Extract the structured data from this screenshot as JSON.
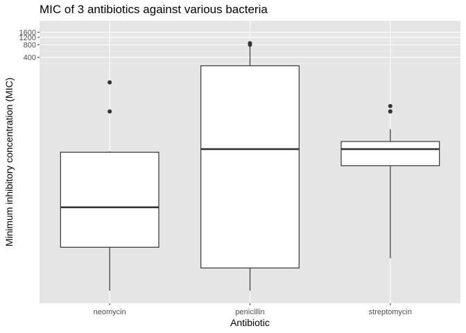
{
  "chart_data": {
    "type": "box",
    "title": "MIC of 3 antibiotics against various bacteria",
    "xlabel": "Antibiotic",
    "ylabel": "Minimum inhibitory concentration (MIC)",
    "y_scale": "log",
    "ylim": [
      0.0005,
      3000
    ],
    "y_tick_values": [
      400,
      800,
      1200,
      1600
    ],
    "y_tick_labels": [
      "400",
      "800",
      "1200",
      "1600"
    ],
    "categories": [
      "neomycin",
      "penicillin",
      "streptomycin"
    ],
    "boxes": [
      {
        "name": "neomycin",
        "whisker_low": 0.001,
        "q1": 0.011,
        "median": 0.1,
        "q3": 2.1,
        "whisker_high": 2.2,
        "outliers": [
          20,
          100
        ]
      },
      {
        "name": "penicillin",
        "whisker_low": 0.001,
        "q1": 0.0035,
        "median": 2.5,
        "q3": 250,
        "whisker_high": 800,
        "outliers": [
          800,
          870
        ]
      },
      {
        "name": "streptomycin",
        "whisker_low": 0.006,
        "q1": 1.0,
        "median": 2.5,
        "q3": 3.8,
        "whisker_high": 7.5,
        "outliers": [
          20,
          20,
          27
        ]
      }
    ],
    "grid": true,
    "legend": "none"
  }
}
